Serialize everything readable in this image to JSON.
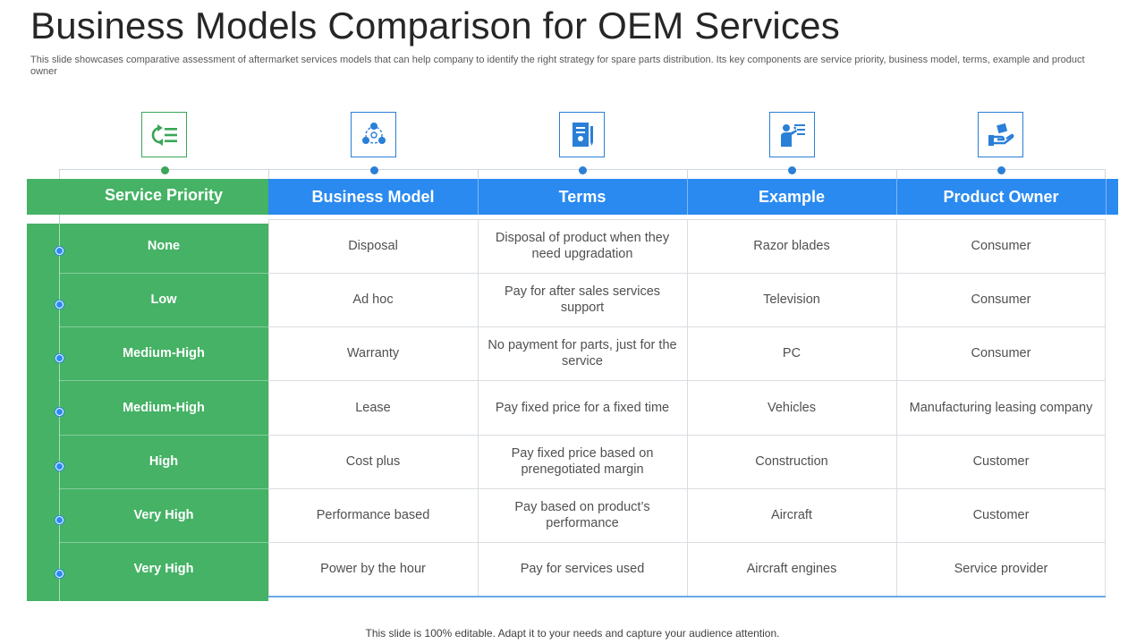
{
  "title": "Business Models Comparison for OEM Services",
  "subtitle": "This slide showcases comparative assessment of aftermarket services models that can help company to identify the right strategy for spare parts distribution. Its key components are service priority, business model, terms, example and product owner",
  "columns": [
    {
      "label": "Service Priority",
      "icon": "refresh-list-icon",
      "color": "#45b265"
    },
    {
      "label": "Business Model",
      "icon": "cycle-nodes-icon",
      "color": "#2a8af0"
    },
    {
      "label": "Terms",
      "icon": "document-pen-icon",
      "color": "#2a8af0"
    },
    {
      "label": "Example",
      "icon": "presenter-board-icon",
      "color": "#2a8af0"
    },
    {
      "label": "Product Owner",
      "icon": "hand-box-icon",
      "color": "#2a8af0"
    }
  ],
  "rows": [
    {
      "priority": "None",
      "model": "Disposal",
      "terms": "Disposal of product when they need upgradation",
      "example": "Razor blades",
      "owner": "Consumer"
    },
    {
      "priority": "Low",
      "model": "Ad hoc",
      "terms": "Pay for after sales services support",
      "example": "Television",
      "owner": "Consumer"
    },
    {
      "priority": "Medium-High",
      "model": "Warranty",
      "terms": "No payment for parts, just for the service",
      "example": "PC",
      "owner": "Consumer"
    },
    {
      "priority": "Medium-High",
      "model": "Lease",
      "terms": "Pay fixed price for a fixed time",
      "example": "Vehicles",
      "owner": "Manufacturing leasing company"
    },
    {
      "priority": "High",
      "model": "Cost plus",
      "terms": "Pay fixed price based on prenegotiated margin",
      "example": "Construction",
      "owner": "Customer"
    },
    {
      "priority": "Very High",
      "model": "Performance based",
      "terms": "Pay based on product’s performance",
      "example": "Aircraft",
      "owner": "Customer"
    },
    {
      "priority": "Very High",
      "model": "Power by the hour",
      "terms": "Pay for services used",
      "example": "Aircraft engines",
      "owner": "Service provider"
    }
  ],
  "footer": "This slide is 100% editable. Adapt it to your  needs and capture your audience attention."
}
